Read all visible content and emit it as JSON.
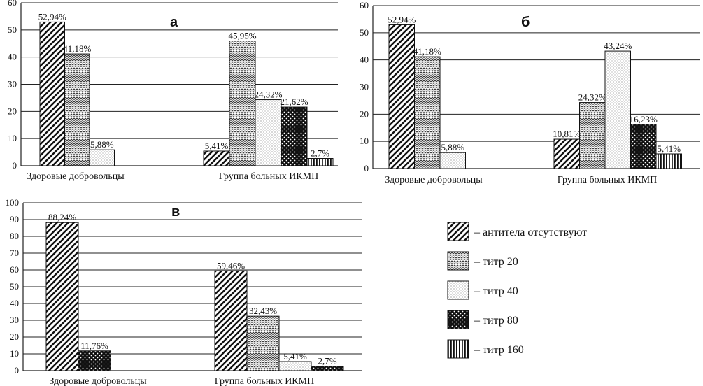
{
  "chart_data": [
    {
      "type": "bar",
      "title": "а",
      "ylim": [
        0,
        60
      ],
      "yticks": [
        0,
        10,
        20,
        30,
        40,
        50,
        60
      ],
      "categories": [
        "Здоровые добровольцы",
        "Группа больных ИКМП"
      ],
      "series": [
        {
          "name": "– антитела отсутствуют",
          "values": [
            52.94,
            5.41
          ],
          "labels": [
            "52,94%",
            "5,41%"
          ]
        },
        {
          "name": "– титр 20",
          "values": [
            41.18,
            45.95
          ],
          "labels": [
            "41,18%",
            "45,95%"
          ]
        },
        {
          "name": "– титр 40",
          "values": [
            5.88,
            24.32
          ],
          "labels": [
            "5,88%",
            "24,32%"
          ]
        },
        {
          "name": "– титр 80",
          "values": [
            null,
            21.62
          ],
          "labels": [
            null,
            "21,62%"
          ]
        },
        {
          "name": "– титр 160",
          "values": [
            null,
            2.7
          ],
          "labels": [
            null,
            "2,7%"
          ]
        }
      ]
    },
    {
      "type": "bar",
      "title": "б",
      "ylim": [
        0,
        60
      ],
      "yticks": [
        0,
        10,
        20,
        30,
        40,
        50,
        60
      ],
      "categories": [
        "Здоровые добровольцы",
        "Группа больных ИКМП"
      ],
      "series": [
        {
          "name": "– антитела отсутствуют",
          "values": [
            52.94,
            10.81
          ],
          "labels": [
            "52,94%",
            "10,81%"
          ]
        },
        {
          "name": "– титр 20",
          "values": [
            41.18,
            24.32
          ],
          "labels": [
            "41,18%",
            "24,32%"
          ]
        },
        {
          "name": "– титр 40",
          "values": [
            5.88,
            43.24
          ],
          "labels": [
            "5,88%",
            "43,24%"
          ]
        },
        {
          "name": "– титр 80",
          "values": [
            null,
            16.23
          ],
          "labels": [
            null,
            "16,23%"
          ]
        },
        {
          "name": "– титр 160",
          "values": [
            null,
            5.41
          ],
          "labels": [
            null,
            "5,41%"
          ]
        }
      ]
    },
    {
      "type": "bar",
      "title": "в",
      "ylim": [
        0,
        100
      ],
      "yticks": [
        0,
        10,
        20,
        30,
        40,
        50,
        60,
        70,
        80,
        90,
        100
      ],
      "categories": [
        "Здоровые добровольцы",
        "Группа больных ИКМП"
      ],
      "series": [
        {
          "name": "– антитела отсутствуют",
          "values": [
            88.24,
            59.46
          ],
          "labels": [
            "88,24%",
            "59,46%"
          ]
        },
        {
          "name": "– титр 20",
          "values": [
            null,
            32.43
          ],
          "labels": [
            null,
            "32,43%"
          ]
        },
        {
          "name": "– титр 40",
          "values": [
            null,
            5.41
          ],
          "labels": [
            null,
            "5,41%"
          ]
        },
        {
          "name": "– титр 80",
          "values": [
            11.76,
            2.7
          ],
          "labels": [
            "11,76%",
            "2,7%"
          ]
        },
        {
          "name": "– титр 160",
          "values": [
            null,
            null
          ],
          "labels": [
            null,
            null
          ]
        }
      ]
    }
  ],
  "legend": [
    {
      "label": "– антитела отсутствуют",
      "pattern": "diag"
    },
    {
      "label": "– титр 20",
      "pattern": "wave"
    },
    {
      "label": "– титр 40",
      "pattern": "dots"
    },
    {
      "label": "– титр 80",
      "pattern": "check"
    },
    {
      "label": "– титр 160",
      "pattern": "vert"
    }
  ]
}
